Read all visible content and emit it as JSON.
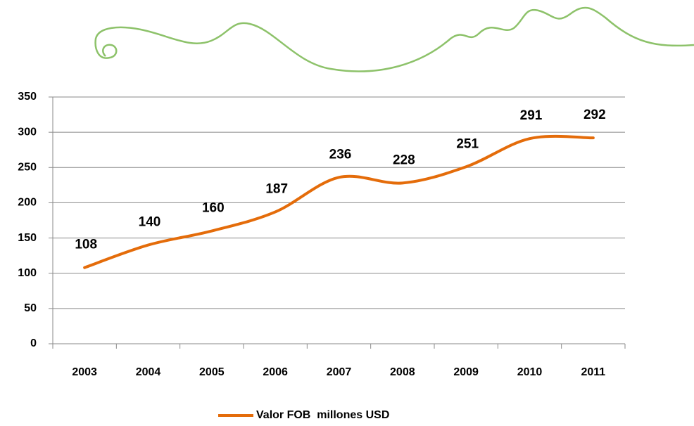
{
  "chart_data": {
    "type": "line",
    "categories": [
      "2003",
      "2004",
      "2005",
      "2006",
      "2007",
      "2008",
      "2009",
      "2010",
      "2011"
    ],
    "series": [
      {
        "name": "Valor FOB  millones USD",
        "color": "#E46C0A",
        "values": [
          108,
          140,
          160,
          187,
          236,
          228,
          251,
          291,
          292
        ]
      }
    ],
    "ylim": [
      0,
      350
    ],
    "yticks": [
      0,
      50,
      100,
      150,
      200,
      250,
      300,
      350
    ],
    "grid": true,
    "legend": "bottom"
  }
}
